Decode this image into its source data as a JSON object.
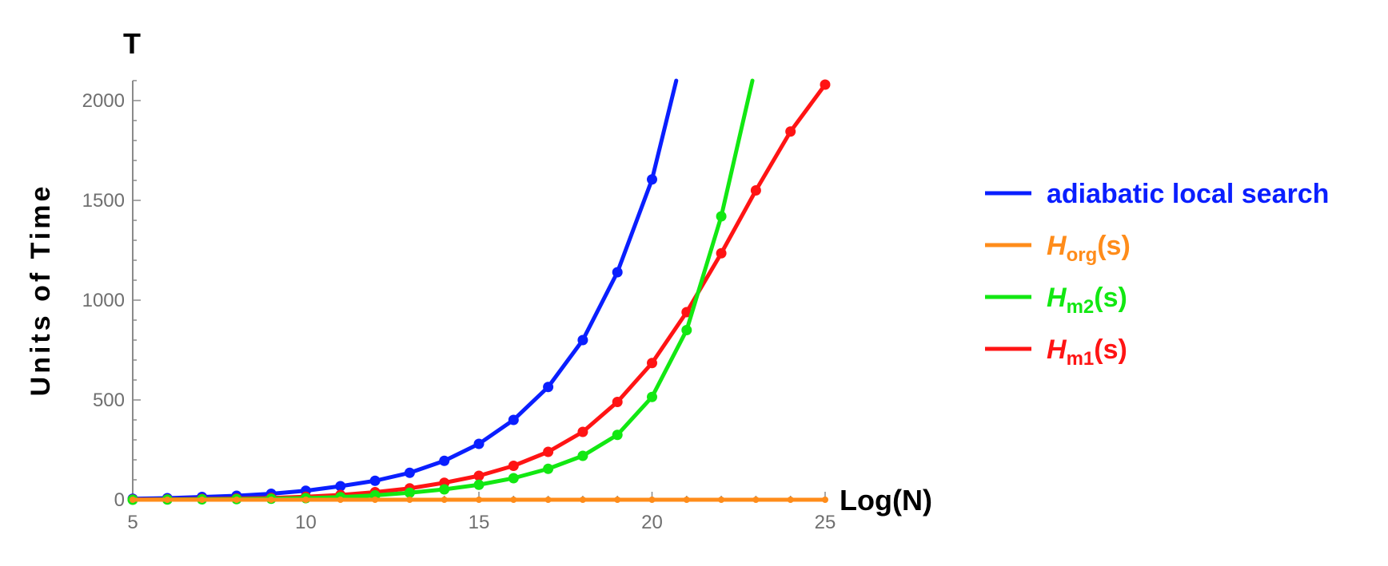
{
  "chart_data": {
    "type": "line",
    "title": "",
    "xlabel": "Log(N)",
    "ylabel": "Units of Time",
    "ylabel_top": "T",
    "xlim": [
      5,
      25
    ],
    "ylim": [
      0,
      2100
    ],
    "xticks": [
      5,
      10,
      15,
      20,
      25
    ],
    "yticks": [
      0,
      500,
      1000,
      1500,
      2000
    ],
    "grid": false,
    "legend_position": "right",
    "series": [
      {
        "name": "adiabatic local search",
        "color": "#0a1fff",
        "x": [
          5,
          6,
          7,
          8,
          9,
          10,
          11,
          12,
          13,
          14,
          15,
          16,
          17,
          18,
          19,
          20,
          20.7
        ],
        "y": [
          5,
          8,
          14,
          20,
          30,
          45,
          68,
          95,
          135,
          195,
          280,
          400,
          565,
          800,
          1140,
          1605,
          2100
        ],
        "markers_until": 20
      },
      {
        "name": "H_org(s)",
        "name_base": "H",
        "name_sub": "org",
        "name_tail": "(s)",
        "color": "#ff8c1a",
        "x": [
          5,
          6,
          7,
          8,
          9,
          10,
          11,
          12,
          13,
          14,
          15,
          16,
          17,
          18,
          19,
          20,
          21,
          22,
          23,
          24,
          25
        ],
        "y": [
          0,
          0,
          0,
          0,
          0,
          0,
          0,
          0,
          0,
          0,
          0,
          0,
          0,
          0,
          0,
          0,
          0,
          0,
          0,
          0,
          0
        ],
        "markers_until": 25
      },
      {
        "name": "H_m2(s)",
        "name_base": "H",
        "name_sub": "m2",
        "name_tail": "(s)",
        "color": "#12e812",
        "x": [
          5,
          6,
          7,
          8,
          9,
          10,
          11,
          12,
          13,
          14,
          15,
          16,
          17,
          18,
          19,
          20,
          21,
          22,
          22.9
        ],
        "y": [
          0,
          1,
          2,
          3,
          5,
          8,
          13,
          22,
          35,
          52,
          75,
          108,
          155,
          220,
          325,
          515,
          850,
          1420,
          2100
        ],
        "markers_until": 22
      },
      {
        "name": "H_m1(s)",
        "name_base": "H",
        "name_sub": "m1",
        "name_tail": "(s)",
        "color": "#ff1414",
        "x": [
          5,
          6,
          7,
          8,
          9,
          10,
          11,
          12,
          13,
          14,
          15,
          16,
          17,
          18,
          19,
          20,
          21,
          22,
          23,
          24,
          25
        ],
        "y": [
          1,
          2,
          4,
          6,
          9,
          15,
          24,
          38,
          57,
          85,
          120,
          170,
          240,
          340,
          490,
          685,
          940,
          1235,
          1550,
          1845,
          2080
        ],
        "markers_until": 25
      }
    ]
  }
}
